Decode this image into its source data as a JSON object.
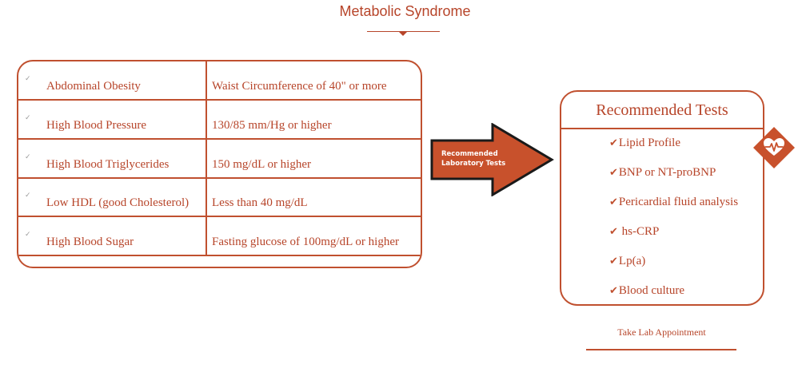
{
  "page": {
    "title": "Metabolic Syndrome"
  },
  "criteria": {
    "rows": [
      {
        "check": "✓",
        "name": "Abdominal Obesity",
        "value": "Waist Circumference of 40\" or more"
      },
      {
        "check": "✓",
        "name": "High Blood Pressure",
        "value": "130/85 mm/Hg or higher"
      },
      {
        "check": "✓",
        "name": "High Blood Triglycerides",
        "value": "150 mg/dL or higher"
      },
      {
        "check": "✓",
        "name": "Low HDL (good Cholesterol)",
        "value": "Less than 40 mg/dL"
      },
      {
        "check": "✓",
        "name": "High Blood Sugar",
        "value": "Fasting glucose of 100mg/dL or higher"
      }
    ]
  },
  "arrow": {
    "line1": "Recommended",
    "line2": "Laboratory Tests"
  },
  "tests": {
    "title": "Recommended Tests",
    "tick": "✔",
    "items": [
      "Lipid Profile",
      "BNP or NT-proBNP",
      "Pericardial fluid analysis",
      " hs-CRP",
      "Lp(a)",
      "Blood culture"
    ],
    "badge_icon": "heart-pulse-icon"
  },
  "appointment": {
    "label": "Take Lab Appointment"
  },
  "colors": {
    "accent": "#c0502f",
    "text": "#b7452a",
    "check_gray": "#9a9a9a"
  }
}
